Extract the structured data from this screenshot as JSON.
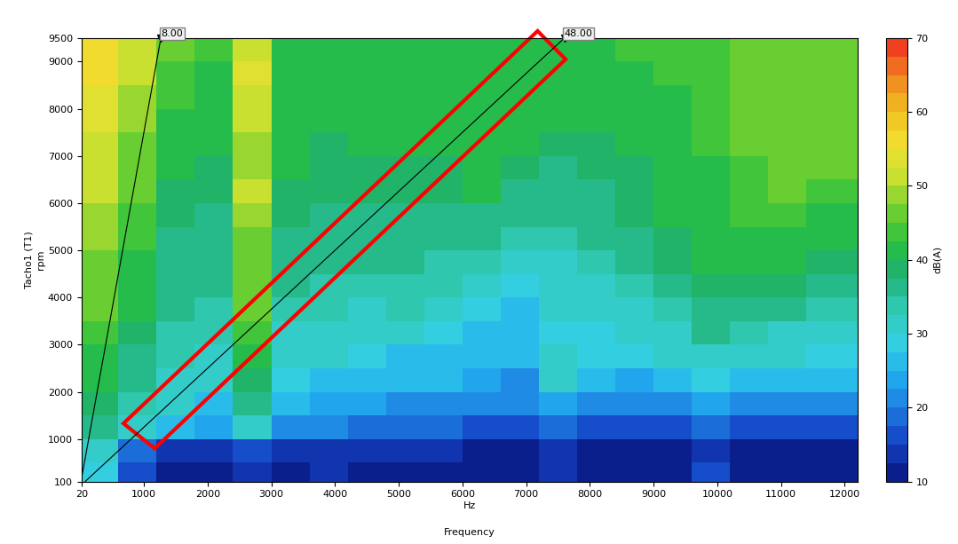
{
  "chart_data": {
    "type": "heatmap",
    "x_label": "Hz",
    "x_title": "Frequency",
    "y_label": "rpm",
    "y_title": "Tacho1 (T1)",
    "xlim": [
      20,
      12200
    ],
    "xticks": [
      20,
      1000,
      2000,
      3000,
      4000,
      5000,
      6000,
      7000,
      8000,
      9000,
      10000,
      11000,
      12000
    ],
    "ylim": [
      100,
      9500
    ],
    "yticks": [
      100,
      1000,
      2000,
      3000,
      4000,
      5000,
      6000,
      7000,
      8000,
      9000,
      9500
    ],
    "x_edges": [
      20,
      600,
      1200,
      1800,
      2400,
      3000,
      3600,
      4200,
      4800,
      5400,
      6000,
      6600,
      7200,
      7800,
      8400,
      9000,
      9600,
      10200,
      10800,
      11400,
      12200
    ],
    "y_edges": [
      100,
      500,
      1000,
      1500,
      2000,
      2500,
      3000,
      3500,
      4000,
      4500,
      5000,
      5500,
      6000,
      6500,
      7000,
      7500,
      8000,
      8500,
      9000,
      9500
    ],
    "cells": [
      [
        28,
        15,
        12,
        12,
        14,
        12,
        14,
        12,
        12,
        12,
        12,
        12,
        14,
        12,
        12,
        12,
        15,
        12,
        12,
        12
      ],
      [
        32,
        18,
        14,
        14,
        16,
        13,
        14,
        13,
        13,
        13,
        12,
        12,
        13,
        12,
        12,
        12,
        14,
        12,
        12,
        12
      ],
      [
        35,
        30,
        26,
        24,
        30,
        20,
        20,
        18,
        18,
        18,
        17,
        16,
        18,
        16,
        15,
        16,
        18,
        16,
        16,
        16
      ],
      [
        38,
        33,
        30,
        27,
        35,
        25,
        24,
        23,
        22,
        22,
        22,
        20,
        24,
        22,
        20,
        22,
        24,
        22,
        22,
        22
      ],
      [
        40,
        35,
        32,
        30,
        38,
        28,
        27,
        25,
        25,
        25,
        24,
        22,
        30,
        26,
        24,
        26,
        28,
        26,
        26,
        25
      ],
      [
        42,
        36,
        33,
        32,
        40,
        30,
        30,
        28,
        27,
        27,
        26,
        25,
        30,
        28,
        28,
        30,
        32,
        30,
        30,
        28
      ],
      [
        44,
        38,
        34,
        33,
        44,
        32,
        32,
        30,
        30,
        28,
        27,
        27,
        28,
        28,
        30,
        32,
        35,
        34,
        32,
        30
      ],
      [
        45,
        40,
        35,
        34,
        45,
        34,
        33,
        32,
        33,
        31,
        28,
        27,
        30,
        30,
        32,
        34,
        36,
        36,
        35,
        33
      ],
      [
        46,
        41,
        36,
        35,
        46,
        35,
        34,
        34,
        34,
        33,
        30,
        28,
        31,
        32,
        34,
        36,
        38,
        38,
        38,
        36
      ],
      [
        47,
        42,
        36,
        35,
        47,
        36,
        35,
        36,
        35,
        34,
        33,
        30,
        32,
        34,
        36,
        38,
        40,
        40,
        40,
        38
      ],
      [
        48,
        43,
        37,
        36,
        47,
        37,
        36,
        36,
        36,
        36,
        35,
        33,
        34,
        35,
        37,
        39,
        41,
        42,
        42,
        40
      ],
      [
        49,
        44,
        38,
        37,
        48,
        38,
        37,
        37,
        37,
        37,
        37,
        36,
        35,
        36,
        38,
        40,
        42,
        43,
        44,
        42
      ],
      [
        50,
        45,
        39,
        38,
        50,
        39,
        38,
        38,
        38,
        38,
        40,
        37,
        36,
        37,
        38,
        40,
        42,
        44,
        46,
        44
      ],
      [
        51,
        46,
        40,
        39,
        49,
        40,
        39,
        39,
        39,
        39,
        40,
        39,
        37,
        38,
        39,
        40,
        42,
        44,
        46,
        45
      ],
      [
        52,
        47,
        41,
        40,
        48,
        40,
        39,
        40,
        40,
        40,
        40,
        40,
        38,
        39,
        40,
        41,
        43,
        45,
        46,
        46
      ],
      [
        53,
        48,
        42,
        41,
        50,
        41,
        40,
        40,
        40,
        40,
        40,
        41,
        40,
        40,
        41,
        42,
        43,
        45,
        46,
        46
      ],
      [
        54,
        49,
        43,
        42,
        52,
        42,
        40,
        41,
        41,
        40,
        40,
        41,
        41,
        41,
        42,
        42,
        44,
        45,
        46,
        46
      ],
      [
        55,
        50,
        44,
        42,
        53,
        42,
        41,
        41,
        41,
        41,
        41,
        42,
        42,
        42,
        42,
        43,
        44,
        45,
        46,
        46
      ],
      [
        56,
        50,
        45,
        43,
        52,
        42,
        41,
        42,
        41,
        41,
        41,
        42,
        42,
        42,
        43,
        43,
        44,
        45,
        46,
        46
      ]
    ],
    "colorbar_label": "dB(A)",
    "colorbar_range": [
      10,
      70
    ],
    "colorbar_ticks": [
      10,
      20,
      30,
      40,
      50,
      60,
      70
    ],
    "order_lines": [
      {
        "label": "8.00",
        "color": "#000000",
        "x": [
          13.3,
          1266.7
        ],
        "y": [
          100,
          9500
        ]
      },
      {
        "label": "48.00",
        "color": "#000000",
        "x": [
          80,
          7600
        ],
        "y": [
          100,
          9500
        ]
      }
    ],
    "highlight": {
      "x": [
        680,
        1170,
        7620,
        7180
      ],
      "y": [
        1330,
        800,
        9050,
        9650
      ],
      "color": "#ff0000"
    }
  }
}
